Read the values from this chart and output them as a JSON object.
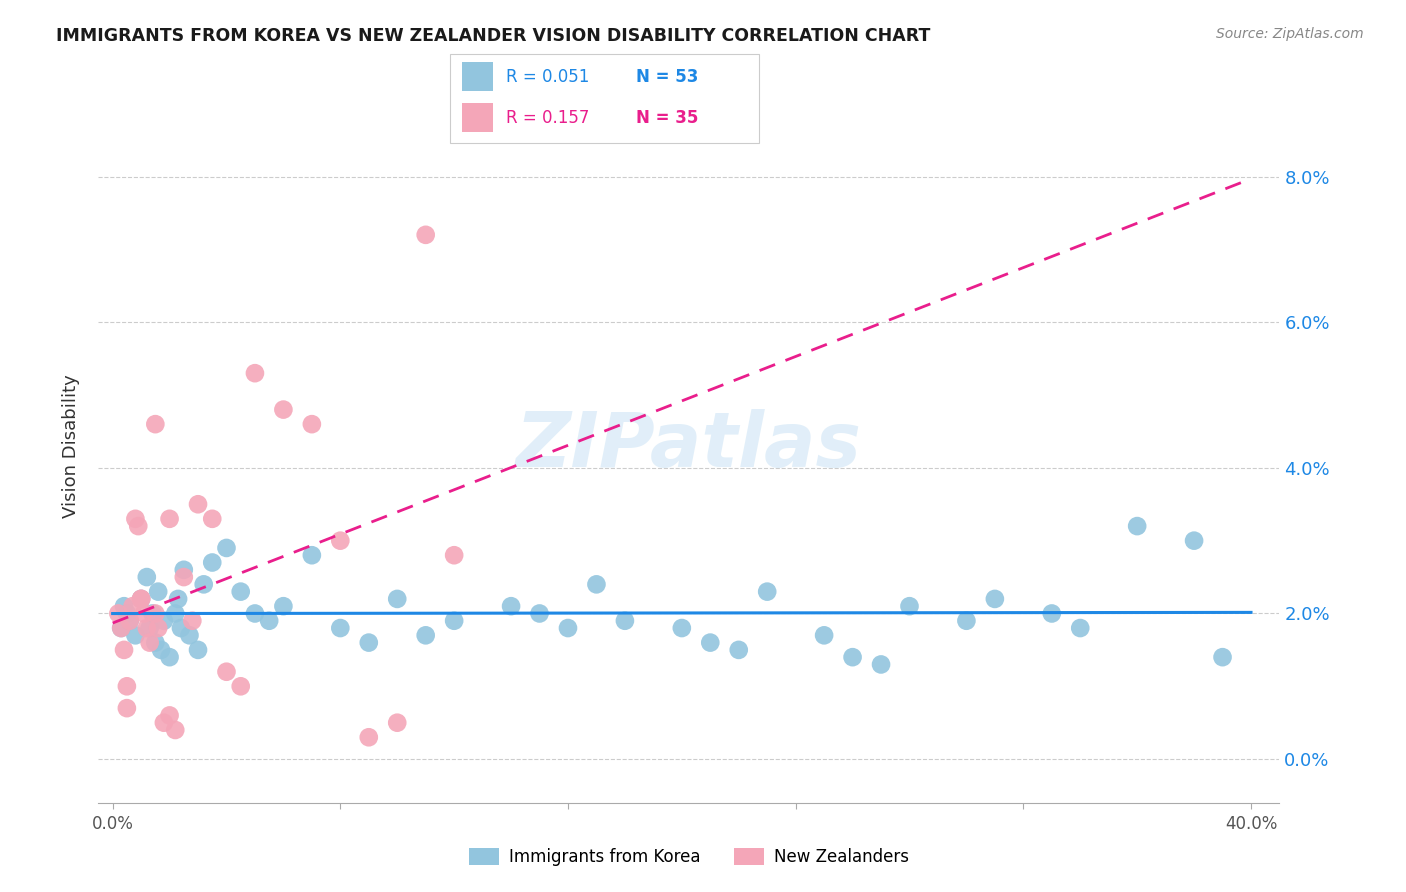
{
  "title": "IMMIGRANTS FROM KOREA VS NEW ZEALANDER VISION DISABILITY CORRELATION CHART",
  "source": "Source: ZipAtlas.com",
  "ylabel": "Vision Disability",
  "ytick_values": [
    0.0,
    2.0,
    4.0,
    6.0,
    8.0
  ],
  "xlim": [
    -0.5,
    41.0
  ],
  "ylim": [
    -0.6,
    9.2
  ],
  "legend_r1": "0.051",
  "legend_n1": "53",
  "legend_r2": "0.157",
  "legend_n2": "35",
  "color_blue": "#92C5DE",
  "color_pink": "#F4A6B8",
  "line_blue": "#1E88E5",
  "line_pink": "#E91E8C",
  "watermark": "ZIPatlas",
  "korea_x": [
    0.3,
    0.5,
    0.4,
    0.6,
    0.8,
    1.0,
    1.2,
    1.4,
    1.3,
    1.5,
    1.7,
    1.6,
    1.8,
    2.0,
    2.2,
    2.4,
    2.3,
    2.5,
    2.7,
    3.0,
    3.2,
    3.5,
    4.0,
    4.5,
    5.0,
    5.5,
    6.0,
    7.0,
    8.0,
    9.0,
    10.0,
    11.0,
    12.0,
    14.0,
    15.0,
    16.0,
    17.0,
    18.0,
    20.0,
    21.0,
    22.0,
    23.0,
    25.0,
    26.0,
    27.0,
    28.0,
    30.0,
    31.0,
    33.0,
    34.0,
    36.0,
    38.0,
    39.0
  ],
  "korea_y": [
    1.8,
    2.0,
    2.1,
    1.9,
    1.7,
    2.2,
    2.5,
    2.0,
    1.8,
    1.6,
    1.5,
    2.3,
    1.9,
    1.4,
    2.0,
    1.8,
    2.2,
    2.6,
    1.7,
    1.5,
    2.4,
    2.7,
    2.9,
    2.3,
    2.0,
    1.9,
    2.1,
    2.8,
    1.8,
    1.6,
    2.2,
    1.7,
    1.9,
    2.1,
    2.0,
    1.8,
    2.4,
    1.9,
    1.8,
    1.6,
    1.5,
    2.3,
    1.7,
    1.4,
    1.3,
    2.1,
    1.9,
    2.2,
    2.0,
    1.8,
    3.2,
    3.0,
    1.4
  ],
  "nz_x": [
    0.2,
    0.3,
    0.4,
    0.5,
    0.6,
    0.7,
    0.8,
    0.9,
    1.0,
    1.1,
    1.2,
    1.3,
    1.5,
    1.6,
    1.8,
    2.0,
    2.2,
    2.5,
    2.8,
    3.0,
    3.5,
    4.0,
    5.0,
    6.0,
    7.0,
    8.0,
    9.0,
    10.0,
    11.0,
    12.0,
    4.5,
    0.5,
    1.0,
    1.5,
    2.0
  ],
  "nz_y": [
    2.0,
    1.8,
    1.5,
    0.7,
    1.9,
    2.1,
    3.3,
    3.2,
    2.2,
    2.0,
    1.8,
    1.6,
    2.0,
    1.8,
    0.5,
    0.6,
    0.4,
    2.5,
    1.9,
    3.5,
    3.3,
    1.2,
    5.3,
    4.8,
    4.6,
    3.0,
    0.3,
    0.5,
    7.2,
    2.8,
    1.0,
    1.0,
    2.2,
    4.6,
    3.3
  ]
}
